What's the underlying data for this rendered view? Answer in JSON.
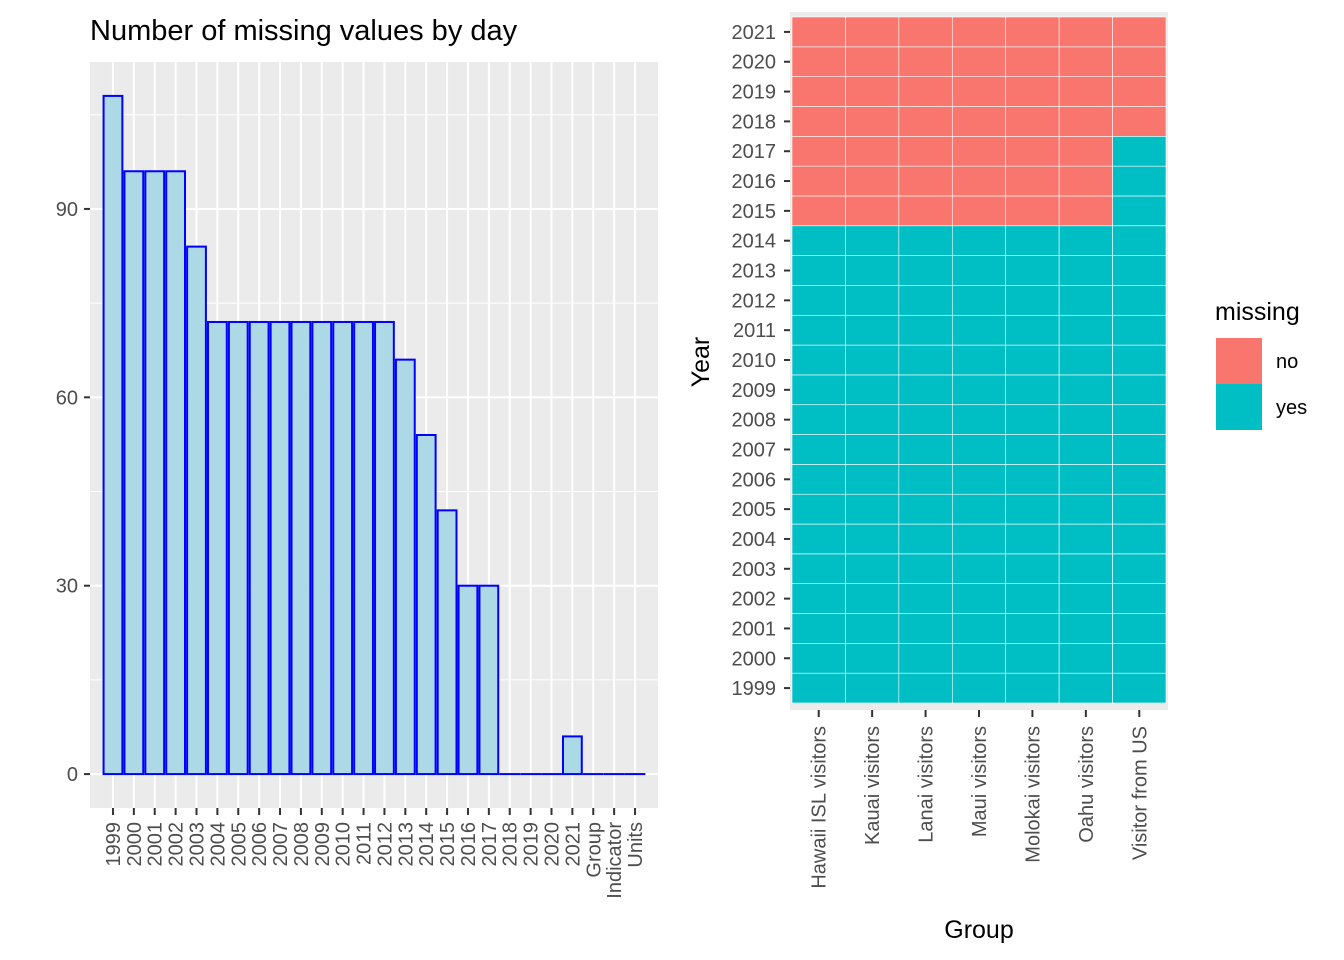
{
  "chart_data": [
    {
      "type": "bar",
      "title": "Number of missing values by day",
      "xlabel": "",
      "ylabel": "",
      "categories": [
        "1999",
        "2000",
        "2001",
        "2002",
        "2003",
        "2004",
        "2005",
        "2006",
        "2007",
        "2008",
        "2009",
        "2010",
        "2011",
        "2012",
        "2013",
        "2014",
        "2015",
        "2016",
        "2017",
        "2018",
        "2019",
        "2020",
        "2021",
        "Group",
        "Indicator",
        "Units"
      ],
      "values": [
        108,
        96,
        96,
        96,
        84,
        72,
        72,
        72,
        72,
        72,
        72,
        72,
        72,
        72,
        66,
        54,
        42,
        30,
        30,
        0,
        0,
        0,
        6,
        0,
        0,
        0
      ],
      "ylim": [
        -5.4,
        113.4
      ],
      "yticks": [
        0,
        30,
        60,
        90
      ],
      "grid": true,
      "colors": {
        "bar_fill": "#add8e6",
        "bar_outline": "#0000ff",
        "panel": "#ebebeb",
        "grid": "#ffffff"
      }
    },
    {
      "type": "heatmap",
      "title": "",
      "xlabel": "Group",
      "ylabel": "Year",
      "x": [
        "Hawaii ISL visitors",
        "Kauai visitors",
        "Lanai visitors",
        "Maui visitors",
        "Molokai visitors",
        "Oahu visitors",
        "Visitor from US"
      ],
      "y": [
        "1999",
        "2000",
        "2001",
        "2002",
        "2003",
        "2004",
        "2005",
        "2006",
        "2007",
        "2008",
        "2009",
        "2010",
        "2011",
        "2012",
        "2013",
        "2014",
        "2015",
        "2016",
        "2017",
        "2018",
        "2019",
        "2020",
        "2021"
      ],
      "first_year_not_missing": [
        2015,
        2015,
        2015,
        2015,
        2015,
        2015,
        2018
      ],
      "legend": {
        "title": "missing",
        "placement": "right",
        "entries": [
          {
            "label": "no",
            "color": "#f8766d"
          },
          {
            "label": "yes",
            "color": "#00bfc4"
          }
        ]
      },
      "grid": true
    }
  ]
}
